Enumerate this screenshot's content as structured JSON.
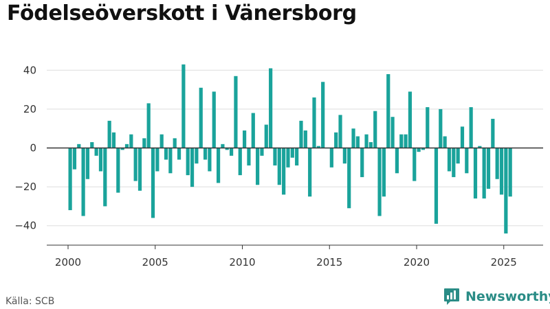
{
  "title": "Födelseöverskott i Vänersborg",
  "source": "Källa: SCB",
  "brand": {
    "name": "Newsworthy",
    "icon": "newsworthy-logo-icon"
  },
  "colors": {
    "bar": "#1aa39b",
    "zero_line": "#333333",
    "grid": "#dddddd",
    "brand": "#2a8c86"
  },
  "chart_data": {
    "type": "bar",
    "title": "Födelseöverskott i Vänersborg",
    "xlabel": "",
    "ylabel": "",
    "frequency": "quarterly",
    "x_ticks": [
      "2000",
      "2005",
      "2010",
      "2015",
      "2020",
      "2025"
    ],
    "y_ticks": [
      "40",
      "20",
      "0",
      "−20",
      "−40"
    ],
    "y_tick_values": [
      40,
      20,
      0,
      -20,
      -40
    ],
    "ylim": [
      -50,
      47
    ],
    "xlim": [
      1999.1,
      2026.9
    ],
    "grid": true,
    "legend": "none",
    "start": "2000 Q1",
    "values": [
      -32,
      -11,
      2,
      -35,
      -16,
      3,
      -4,
      -12,
      -30,
      14,
      8,
      -23,
      -1,
      2,
      7,
      -17,
      -22,
      5,
      23,
      -36,
      -12,
      7,
      -6,
      -13,
      5,
      -6,
      43,
      -14,
      -20,
      -8,
      31,
      -6,
      -12,
      29,
      -18,
      2,
      -1,
      -4,
      37,
      -14,
      9,
      -9,
      18,
      -19,
      -4,
      12,
      41,
      -9,
      -19,
      -24,
      -10,
      -5,
      -9,
      14,
      9,
      -25,
      26,
      1,
      34,
      0,
      -10,
      8,
      17,
      -8,
      -31,
      10,
      6,
      -15,
      7,
      3,
      19,
      -35,
      -25,
      38,
      16,
      -13,
      7,
      7,
      29,
      -17,
      -2,
      -1,
      21,
      0,
      -39,
      20,
      6,
      -12,
      -15,
      -8,
      11,
      -13,
      21,
      -26,
      1,
      -26,
      -21,
      15,
      -16,
      -24,
      -44,
      -25
    ]
  }
}
